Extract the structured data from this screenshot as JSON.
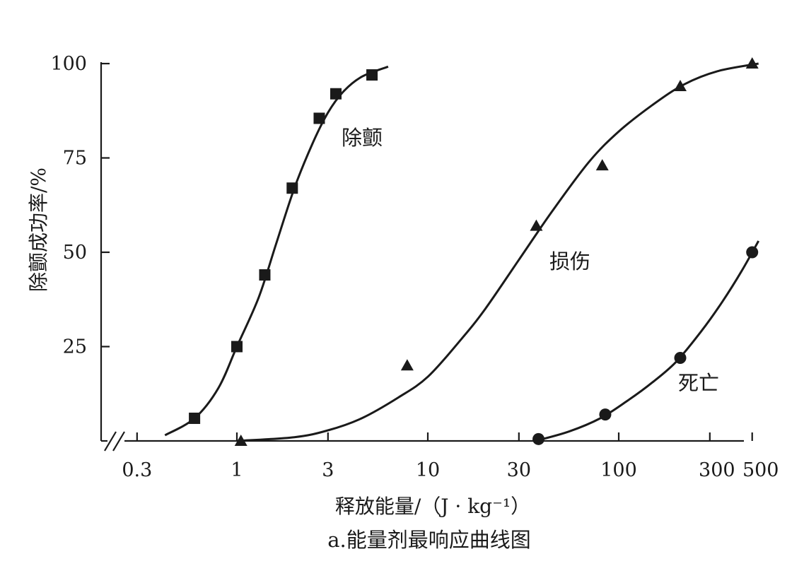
{
  "chart_data": {
    "type": "scatter",
    "x_scale": "log",
    "xlim": [
      0.2,
      550
    ],
    "ylim": [
      0,
      100
    ],
    "grid": false,
    "axis_break": true,
    "x_ticks": [
      0.3,
      1,
      3,
      10,
      30,
      100,
      300,
      500
    ],
    "x_tick_labels": [
      "0.3",
      "1",
      "3",
      "10",
      "30",
      "100",
      "300",
      "500"
    ],
    "y_ticks": [
      25,
      50,
      75,
      100
    ],
    "y_tick_labels": [
      "25",
      "50",
      "75",
      "100"
    ],
    "xlabel": "释放能量/（J · kg⁻¹）",
    "ylabel": "除颤成功率/%",
    "caption": "a.能量剂最响应曲线图",
    "series": [
      {
        "name": "除颤",
        "marker": "square",
        "points": [
          [
            0.6,
            6
          ],
          [
            1.0,
            25
          ],
          [
            1.4,
            44
          ],
          [
            1.95,
            67
          ],
          [
            2.7,
            85.5
          ],
          [
            3.3,
            92
          ],
          [
            5.1,
            97
          ]
        ],
        "curve": [
          [
            0.42,
            1.5
          ],
          [
            0.6,
            6
          ],
          [
            0.8,
            14
          ],
          [
            1.0,
            25
          ],
          [
            1.3,
            38
          ],
          [
            1.6,
            52
          ],
          [
            2.0,
            67
          ],
          [
            2.5,
            79
          ],
          [
            3.0,
            87
          ],
          [
            3.6,
            92.5
          ],
          [
            4.5,
            96.5
          ],
          [
            6.2,
            99.2
          ]
        ]
      },
      {
        "name": "损伤",
        "marker": "triangle",
        "points": [
          [
            1.05,
            0
          ],
          [
            7.8,
            20
          ],
          [
            37,
            57
          ],
          [
            82,
            73
          ],
          [
            210,
            94
          ],
          [
            500,
            100
          ]
        ],
        "curve": [
          [
            1.0,
            0
          ],
          [
            2.0,
            1
          ],
          [
            3.0,
            2.8
          ],
          [
            4.5,
            6
          ],
          [
            7,
            11.5
          ],
          [
            10,
            17
          ],
          [
            15,
            27
          ],
          [
            20,
            35
          ],
          [
            30,
            48
          ],
          [
            45,
            61
          ],
          [
            70,
            74
          ],
          [
            100,
            82
          ],
          [
            150,
            89
          ],
          [
            220,
            94.5
          ],
          [
            330,
            98
          ],
          [
            540,
            100
          ]
        ]
      },
      {
        "name": "死亡",
        "marker": "circle",
        "points": [
          [
            38,
            0.5
          ],
          [
            85,
            7
          ],
          [
            210,
            22
          ],
          [
            500,
            50
          ]
        ],
        "curve": [
          [
            38,
            0.2
          ],
          [
            55,
            2.5
          ],
          [
            80,
            6
          ],
          [
            110,
            10.5
          ],
          [
            150,
            15.5
          ],
          [
            200,
            21
          ],
          [
            270,
            29
          ],
          [
            350,
            37
          ],
          [
            440,
            45
          ],
          [
            540,
            53
          ]
        ]
      }
    ]
  }
}
